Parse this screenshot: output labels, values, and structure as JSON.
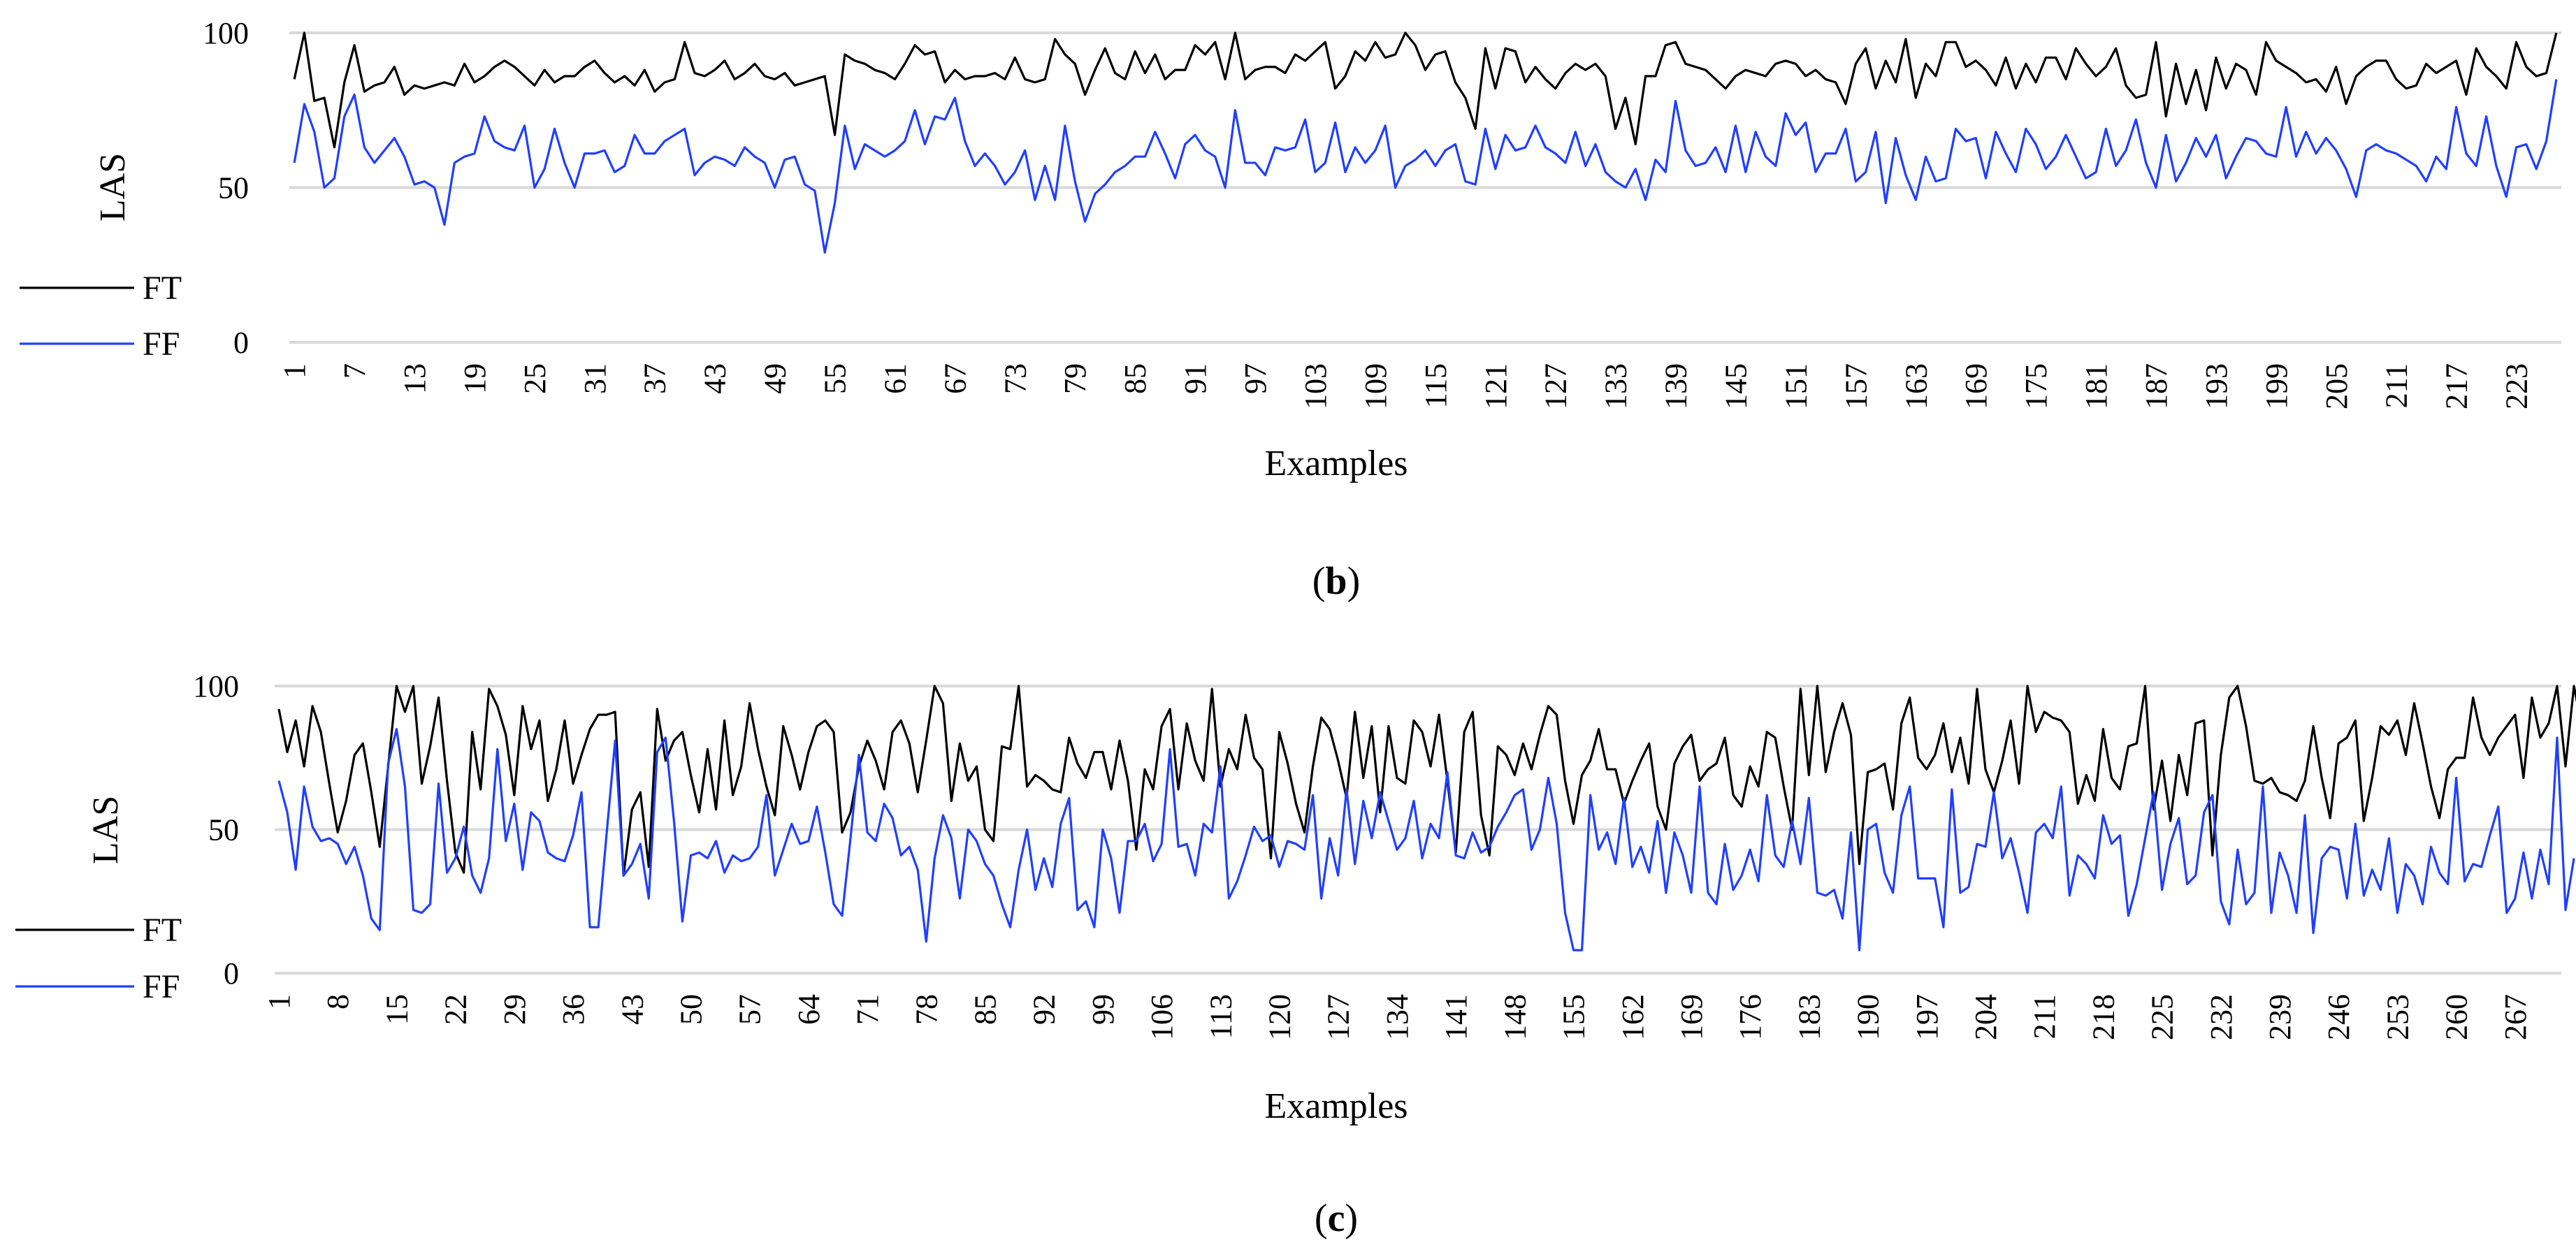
{
  "chart_data": [
    {
      "type": "line",
      "panel": "b",
      "caption_open": "(",
      "caption_letter": "b",
      "caption_close": ")",
      "xlabel": "Examples",
      "ylabel": "LAS",
      "ylim": [
        0,
        100
      ],
      "yticks": [
        0,
        50,
        100
      ],
      "grid": true,
      "legend_position": "left",
      "x_start": 1,
      "x_end": 227,
      "x_tick_step": 6,
      "series": [
        {
          "name": "FT",
          "color": "#000000",
          "values": [
            85,
            100,
            78,
            79,
            63,
            84,
            96,
            81,
            83,
            84,
            89,
            80,
            83,
            82,
            83,
            84,
            83,
            90,
            84,
            86,
            89,
            91,
            89,
            86,
            83,
            88,
            84,
            86,
            86,
            89,
            91,
            87,
            84,
            86,
            83,
            88,
            81,
            84,
            85,
            97,
            87,
            86,
            88,
            91,
            85,
            87,
            90,
            86,
            85,
            87,
            83,
            84,
            85,
            86,
            67,
            93,
            91,
            90,
            88,
            87,
            85,
            90,
            96,
            93,
            94,
            84,
            88,
            85,
            86,
            86,
            87,
            85,
            92,
            85,
            84,
            85,
            98,
            93,
            90,
            80,
            88,
            95,
            87,
            85,
            94,
            87,
            93,
            85,
            88,
            88,
            96,
            93,
            97,
            85,
            100,
            85,
            88,
            89,
            89,
            87,
            93,
            91,
            94,
            97,
            82,
            86,
            94,
            91,
            97,
            92,
            93,
            100,
            96,
            88,
            93,
            94,
            84,
            79,
            69,
            95,
            82,
            95,
            94,
            84,
            89,
            85,
            82,
            87,
            90,
            88,
            90,
            86,
            69,
            79,
            64,
            86,
            86,
            96,
            97,
            90,
            89,
            88,
            85,
            82,
            86,
            88,
            87,
            86,
            90,
            91,
            90,
            86,
            88,
            85,
            84,
            77,
            90,
            95,
            82,
            91,
            84,
            98,
            79,
            90,
            86,
            97,
            97,
            89,
            91,
            88,
            83,
            92,
            82,
            90,
            84,
            92,
            92,
            85,
            95,
            90,
            86,
            89,
            95,
            83,
            79,
            80,
            97,
            73,
            90,
            77,
            88,
            75,
            92,
            82,
            90,
            88,
            80,
            97,
            91,
            89,
            87,
            84,
            85,
            81,
            89,
            77,
            86,
            89,
            91,
            91,
            85,
            82,
            83,
            90,
            87,
            89,
            91,
            80,
            95,
            89,
            86,
            82,
            97,
            89,
            86,
            87,
            100
          ]
        },
        {
          "name": "FF",
          "color": "#1f3fff",
          "values": [
            58,
            77,
            68,
            50,
            53,
            73,
            80,
            63,
            58,
            62,
            66,
            60,
            51,
            52,
            50,
            38,
            58,
            60,
            61,
            73,
            65,
            63,
            62,
            70,
            50,
            56,
            69,
            58,
            50,
            61,
            61,
            62,
            55,
            57,
            67,
            61,
            61,
            65,
            67,
            69,
            54,
            58,
            60,
            59,
            57,
            63,
            60,
            58,
            50,
            59,
            60,
            51,
            49,
            29,
            45,
            70,
            56,
            64,
            62,
            60,
            62,
            65,
            75,
            64,
            73,
            72,
            79,
            65,
            57,
            61,
            57,
            51,
            55,
            62,
            46,
            57,
            46,
            70,
            52,
            39,
            48,
            51,
            55,
            57,
            60,
            60,
            68,
            61,
            53,
            64,
            67,
            62,
            60,
            50,
            75,
            58,
            58,
            54,
            63,
            62,
            63,
            72,
            55,
            58,
            71,
            55,
            63,
            58,
            62,
            70,
            50,
            57,
            59,
            62,
            57,
            62,
            64,
            52,
            51,
            69,
            56,
            67,
            62,
            63,
            70,
            63,
            61,
            58,
            68,
            57,
            64,
            55,
            52,
            50,
            56,
            46,
            59,
            55,
            78,
            62,
            57,
            58,
            63,
            55,
            70,
            55,
            68,
            60,
            57,
            74,
            67,
            71,
            55,
            61,
            61,
            69,
            52,
            55,
            68,
            45,
            66,
            54,
            46,
            60,
            52,
            53,
            69,
            65,
            66,
            53,
            68,
            61,
            55,
            69,
            64,
            56,
            60,
            67,
            60,
            53,
            55,
            69,
            57,
            62,
            72,
            58,
            50,
            67,
            52,
            58,
            66,
            60,
            67,
            53,
            60,
            66,
            65,
            61,
            60,
            76,
            60,
            68,
            61,
            66,
            62,
            56,
            47,
            62,
            64,
            62,
            61,
            59,
            57,
            52,
            60,
            56,
            76,
            61,
            57,
            73,
            57,
            47,
            63,
            64,
            56,
            65,
            85
          ]
        }
      ]
    },
    {
      "type": "line",
      "panel": "c",
      "caption_open": "(",
      "caption_letter": "c",
      "caption_close": ")",
      "xlabel": "Examples",
      "ylabel": "LAS",
      "ylim": [
        0,
        100
      ],
      "yticks": [
        0,
        50,
        100
      ],
      "grid": true,
      "legend_position": "left",
      "x_start": 1,
      "x_end": 272,
      "x_tick_step": 7,
      "series": [
        {
          "name": "FT",
          "color": "#000000",
          "values": [
            92,
            77,
            88,
            72,
            93,
            84,
            66,
            49,
            60,
            76,
            80,
            63,
            44,
            72,
            100,
            91,
            100,
            66,
            79,
            96,
            67,
            42,
            35,
            84,
            64,
            99,
            93,
            83,
            62,
            93,
            78,
            88,
            60,
            71,
            88,
            66,
            76,
            85,
            90,
            90,
            91,
            34,
            57,
            63,
            37,
            92,
            74,
            81,
            84,
            69,
            56,
            78,
            57,
            88,
            62,
            72,
            94,
            78,
            65,
            55,
            86,
            76,
            64,
            77,
            86,
            88,
            84,
            49,
            56,
            72,
            81,
            74,
            64,
            84,
            88,
            80,
            63,
            81,
            100,
            94,
            60,
            80,
            67,
            72,
            50,
            46,
            79,
            78,
            100,
            65,
            69,
            67,
            64,
            63,
            82,
            73,
            68,
            77,
            77,
            64,
            81,
            67,
            43,
            71,
            64,
            86,
            92,
            64,
            87,
            74,
            67,
            99,
            65,
            78,
            71,
            90,
            75,
            71,
            40,
            84,
            73,
            59,
            49,
            72,
            89,
            85,
            74,
            61,
            91,
            68,
            86,
            56,
            86,
            68,
            66,
            88,
            84,
            72,
            90,
            67,
            42,
            84,
            91,
            55,
            41,
            79,
            76,
            69,
            80,
            71,
            83,
            93,
            90,
            67,
            52,
            69,
            74,
            85,
            71,
            71,
            59,
            67,
            74,
            80,
            58,
            50,
            73,
            79,
            83,
            67,
            71,
            73,
            82,
            62,
            58,
            72,
            65,
            84,
            82,
            65,
            50,
            99,
            69,
            100,
            70,
            84,
            94,
            83,
            38,
            70,
            71,
            73,
            57,
            87,
            96,
            75,
            71,
            76,
            87,
            70,
            82,
            66,
            99,
            71,
            63,
            74,
            88,
            66,
            100,
            84,
            91,
            89,
            88,
            84,
            59,
            69,
            60,
            85,
            68,
            64,
            79,
            80,
            100,
            57,
            74,
            53,
            76,
            62,
            87,
            88,
            41,
            76,
            96,
            100,
            86,
            67,
            66,
            68,
            63,
            62,
            60,
            67,
            86,
            68,
            54,
            80,
            82,
            88,
            53,
            68,
            86,
            83,
            88,
            76,
            94,
            80,
            65,
            54,
            71,
            75,
            75,
            96,
            82,
            76,
            82,
            86,
            90,
            68,
            96,
            82,
            87,
            100,
            72,
            100,
            85
          ]
        },
        {
          "name": "FF",
          "color": "#1f3fff",
          "values": [
            67,
            56,
            36,
            65,
            51,
            46,
            47,
            45,
            38,
            44,
            34,
            19,
            15,
            73,
            85,
            65,
            22,
            21,
            24,
            66,
            35,
            40,
            51,
            34,
            28,
            40,
            78,
            46,
            59,
            36,
            56,
            53,
            42,
            40,
            39,
            48,
            63,
            16,
            16,
            49,
            81,
            34,
            38,
            45,
            26,
            77,
            82,
            53,
            18,
            41,
            42,
            40,
            46,
            35,
            41,
            39,
            40,
            44,
            62,
            34,
            43,
            52,
            45,
            46,
            58,
            42,
            24,
            20,
            47,
            76,
            49,
            46,
            59,
            54,
            41,
            44,
            36,
            11,
            40,
            55,
            47,
            26,
            50,
            46,
            38,
            34,
            24,
            16,
            36,
            50,
            29,
            40,
            30,
            52,
            61,
            22,
            25,
            16,
            50,
            40,
            21,
            46,
            46,
            52,
            39,
            45,
            78,
            44,
            45,
            34,
            52,
            49,
            72,
            26,
            32,
            41,
            51,
            46,
            48,
            37,
            46,
            45,
            43,
            62,
            26,
            47,
            34,
            64,
            38,
            60,
            47,
            63,
            53,
            43,
            47,
            60,
            40,
            52,
            47,
            70,
            41,
            40,
            49,
            42,
            44,
            51,
            56,
            62,
            64,
            43,
            50,
            68,
            52,
            21,
            8,
            8,
            62,
            43,
            49,
            38,
            61,
            37,
            44,
            35,
            53,
            28,
            49,
            41,
            28,
            65,
            28,
            24,
            45,
            29,
            34,
            43,
            32,
            62,
            41,
            37,
            53,
            38,
            61,
            28,
            27,
            29,
            19,
            49,
            8,
            50,
            52,
            35,
            28,
            55,
            65,
            33,
            33,
            33,
            16,
            64,
            28,
            30,
            45,
            44,
            63,
            40,
            47,
            35,
            21,
            49,
            52,
            47,
            65,
            27,
            41,
            38,
            33,
            55,
            45,
            48,
            20,
            31,
            47,
            63,
            29,
            45,
            54,
            31,
            34,
            56,
            62,
            25,
            17,
            43,
            24,
            28,
            65,
            21,
            42,
            34,
            21,
            55,
            14,
            40,
            44,
            43,
            26,
            52,
            27,
            36,
            29,
            47,
            21,
            38,
            34,
            24,
            44,
            35,
            31,
            68,
            32,
            38,
            37,
            48,
            58,
            21,
            26,
            42,
            26,
            43,
            31,
            82,
            22,
            40
          ]
        }
      ]
    }
  ]
}
